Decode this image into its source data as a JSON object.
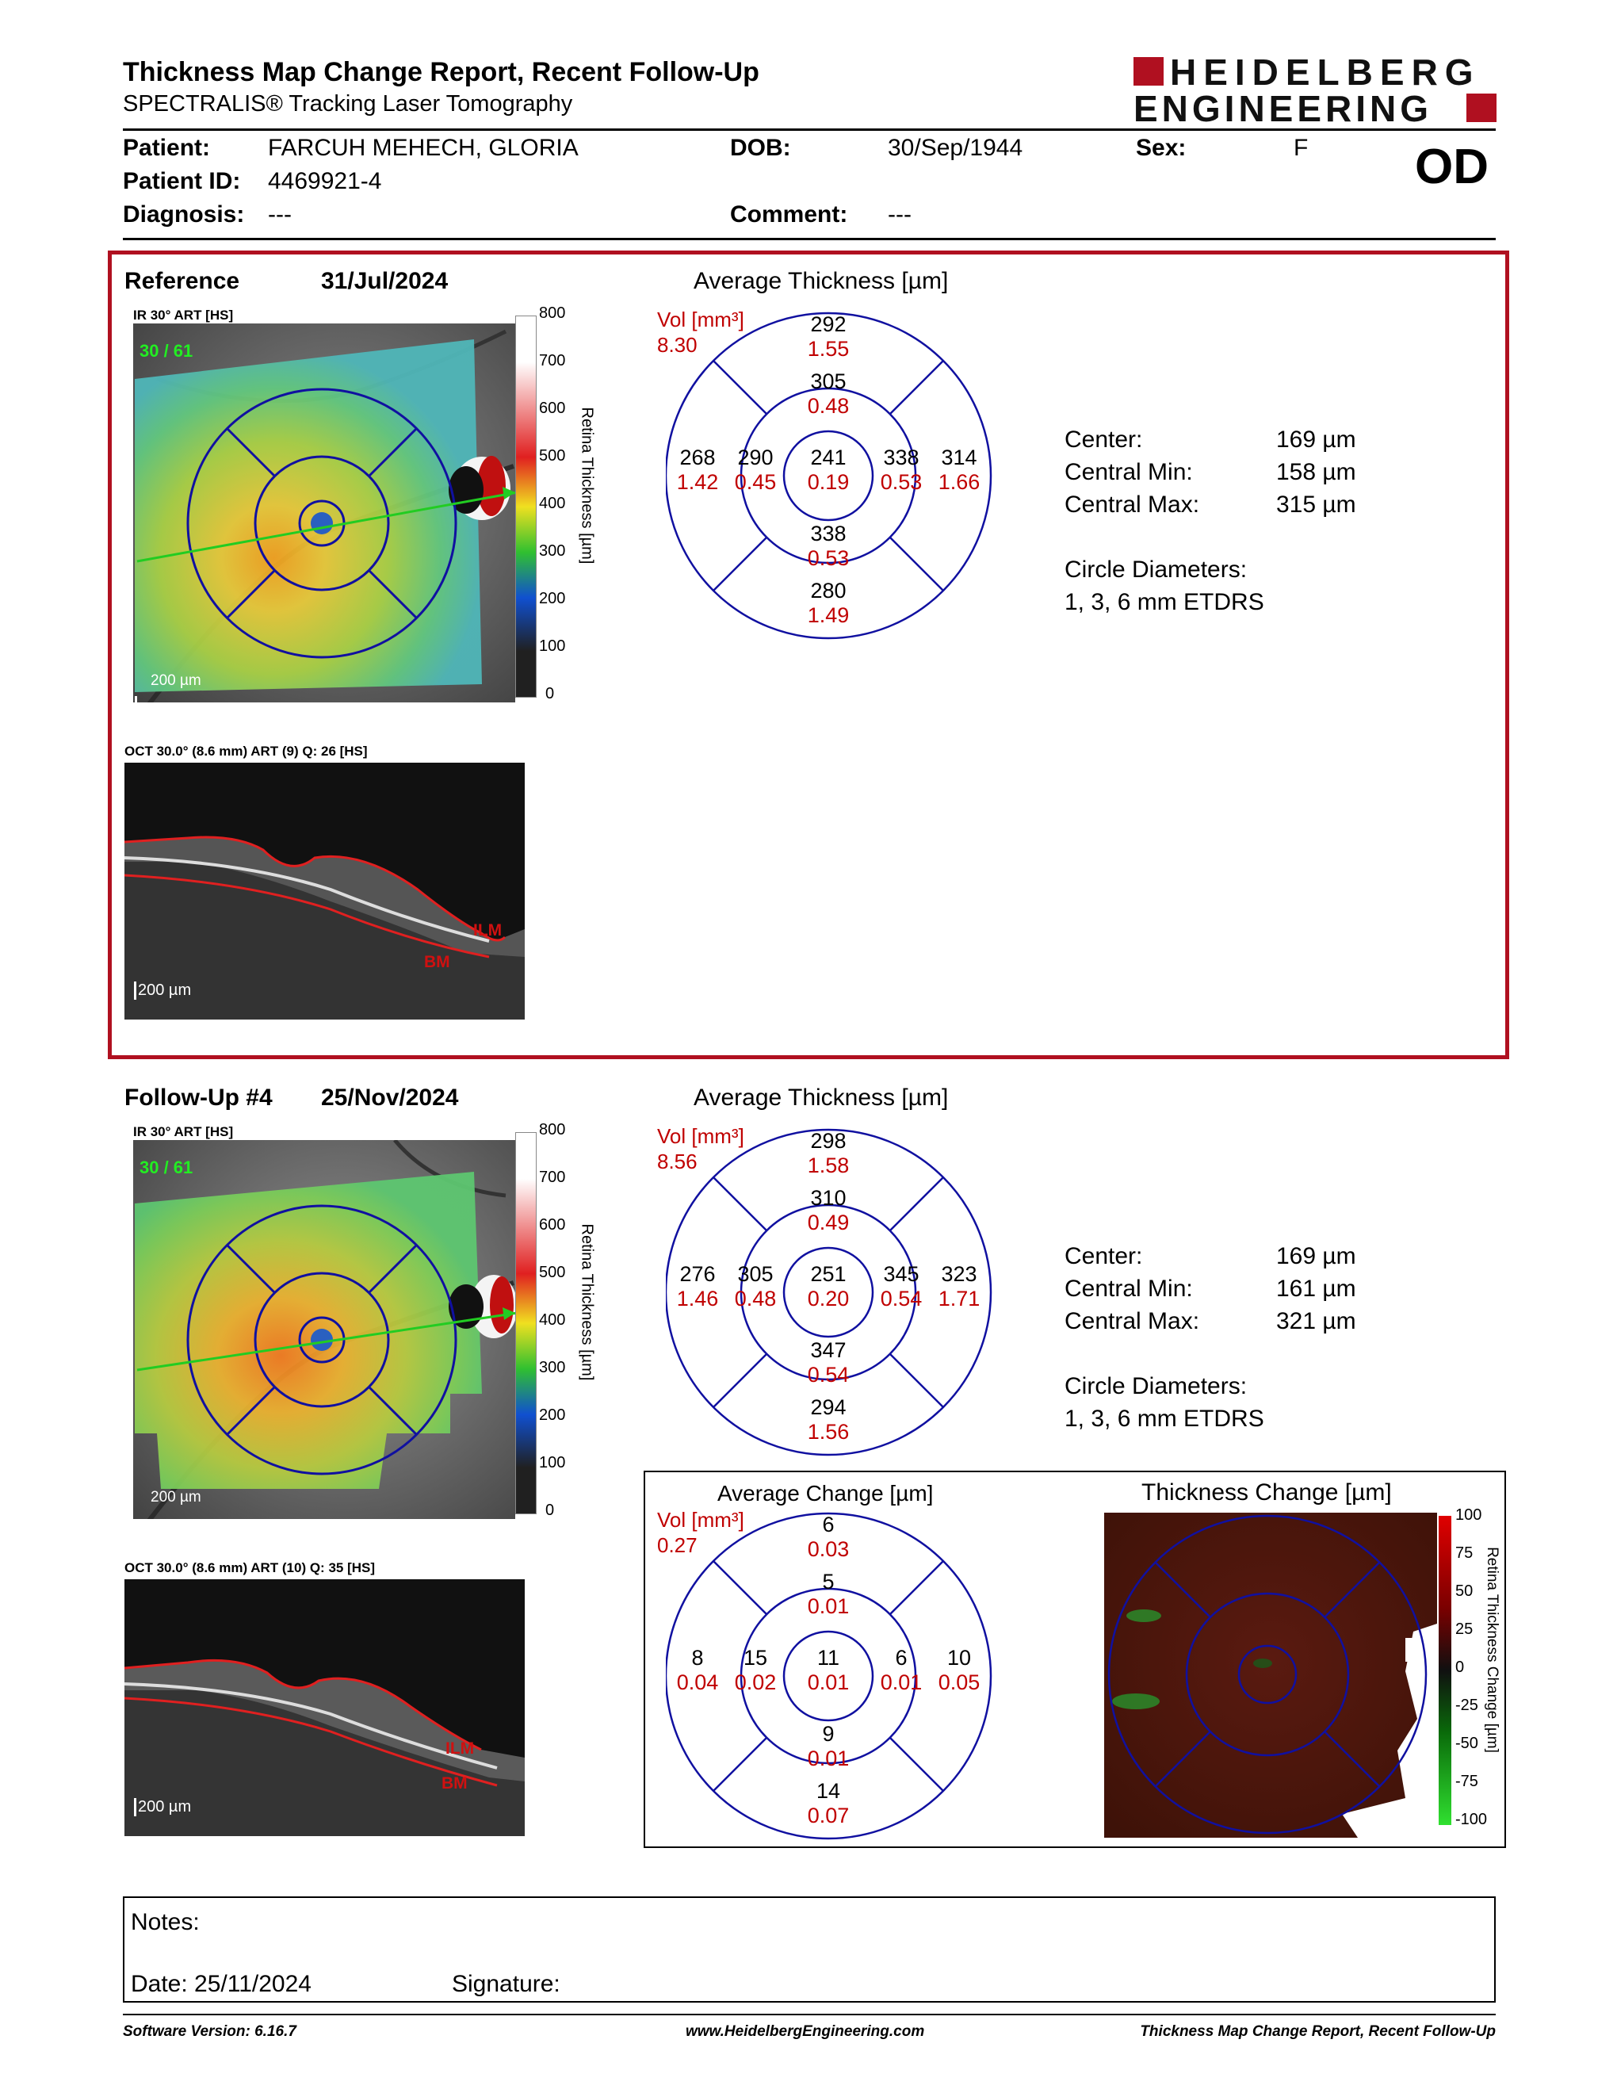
{
  "header": {
    "title": "Thickness Map Change Report, Recent Follow-Up",
    "subtitle": "SPECTRALIS® Tracking Laser Tomography",
    "logo_line1": "HEIDELBERG",
    "logo_line2": "ENGINEERING"
  },
  "patient": {
    "patient_label": "Patient:",
    "patient_value": "FARCUH MEHECH, GLORIA",
    "dob_label": "DOB:",
    "dob_value": "30/Sep/1944",
    "sex_label": "Sex:",
    "sex_value": "F",
    "id_label": "Patient ID:",
    "id_value": "4469921-4",
    "eye": "OD",
    "diagnosis_label": "Diagnosis:",
    "diagnosis_value": "---",
    "comment_label": "Comment:",
    "comment_value": "---"
  },
  "reference": {
    "label": "Reference",
    "date": "31/Jul/2024",
    "ir_caption": "IR 30° ART [HS]",
    "ir_frames": "30 / 61",
    "scale": "200 µm",
    "oct_caption": "OCT 30.0° (8.6 mm) ART (9) Q: 26 [HS]",
    "oct_scale": "200 µm",
    "ilm": "ILM",
    "bm": "BM",
    "avg_title": "Average Thickness [µm]",
    "vol_label": "Vol [mm³]",
    "vol_total": "8.30",
    "sectors": {
      "outer_sup": [
        "292",
        "1.55"
      ],
      "inner_sup": [
        "305",
        "0.48"
      ],
      "outer_temp": [
        "268",
        "1.42"
      ],
      "inner_temp": [
        "290",
        "0.45"
      ],
      "center": [
        "241",
        "0.19"
      ],
      "inner_nasal": [
        "338",
        "0.53"
      ],
      "outer_nasal": [
        "314",
        "1.66"
      ],
      "inner_inf": [
        "338",
        "0.53"
      ],
      "outer_inf": [
        "280",
        "1.49"
      ]
    },
    "stats": {
      "center_label": "Center:",
      "center_value": "169 µm",
      "min_label": "Central Min:",
      "min_value": "158 µm",
      "max_label": "Central Max:",
      "max_value": "315 µm",
      "circle_label": "Circle Diameters:",
      "circle_value": "1, 3, 6 mm ETDRS"
    }
  },
  "followup": {
    "label": "Follow-Up #4",
    "date": "25/Nov/2024",
    "ir_caption": "IR 30° ART [HS]",
    "ir_frames": "30 / 61",
    "scale": "200 µm",
    "oct_caption": "OCT 30.0° (8.6 mm) ART (10) Q: 35 [HS]",
    "oct_scale": "200 µm",
    "ilm": "ILM",
    "bm": "BM",
    "avg_title": "Average Thickness [µm]",
    "vol_label": "Vol [mm³]",
    "vol_total": "8.56",
    "sectors": {
      "outer_sup": [
        "298",
        "1.58"
      ],
      "inner_sup": [
        "310",
        "0.49"
      ],
      "outer_temp": [
        "276",
        "1.46"
      ],
      "inner_temp": [
        "305",
        "0.48"
      ],
      "center": [
        "251",
        "0.20"
      ],
      "inner_nasal": [
        "345",
        "0.54"
      ],
      "outer_nasal": [
        "323",
        "1.71"
      ],
      "inner_inf": [
        "347",
        "0.54"
      ],
      "outer_inf": [
        "294",
        "1.56"
      ]
    },
    "stats": {
      "center_label": "Center:",
      "center_value": "169 µm",
      "min_label": "Central Min:",
      "min_value": "161 µm",
      "max_label": "Central Max:",
      "max_value": "321 µm",
      "circle_label": "Circle Diameters:",
      "circle_value": "1, 3, 6 mm ETDRS"
    }
  },
  "change": {
    "avg_title": "Average Change [µm]",
    "vol_label": "Vol [mm³]",
    "vol_total": "0.27",
    "sectors": {
      "outer_sup": [
        "6",
        "0.03"
      ],
      "inner_sup": [
        "5",
        "0.01"
      ],
      "outer_temp": [
        "8",
        "0.04"
      ],
      "inner_temp": [
        "15",
        "0.02"
      ],
      "center": [
        "11",
        "0.01"
      ],
      "inner_nasal": [
        "6",
        "0.01"
      ],
      "outer_nasal": [
        "10",
        "0.05"
      ],
      "inner_inf": [
        "9",
        "0.01"
      ],
      "outer_inf": [
        "14",
        "0.07"
      ]
    },
    "map_title": "Thickness Change [µm]",
    "colorbar_title": "Retina Thickness Change [µm]",
    "colorbar_ticks": [
      "100",
      "75",
      "50",
      "25",
      "0",
      "-25",
      "-50",
      "-75",
      "-100"
    ]
  },
  "thickness_colorbar": {
    "title": "Retina Thickness [µm]",
    "ticks": [
      "800",
      "700",
      "600",
      "500",
      "400",
      "300",
      "200",
      "100",
      "0"
    ]
  },
  "notes": {
    "notes_label": "Notes:",
    "date_label": "Date: 25/11/2024",
    "signature_label": "Signature:"
  },
  "footer": {
    "software": "Software Version: 6.16.7",
    "website": "www.HeidelbergEngineering.com",
    "report": "Thickness Map Change Report, Recent Follow-Up"
  },
  "colors": {
    "red": "#c00000",
    "frame_red": "#b01020",
    "ring_blue": "#1010a0"
  }
}
